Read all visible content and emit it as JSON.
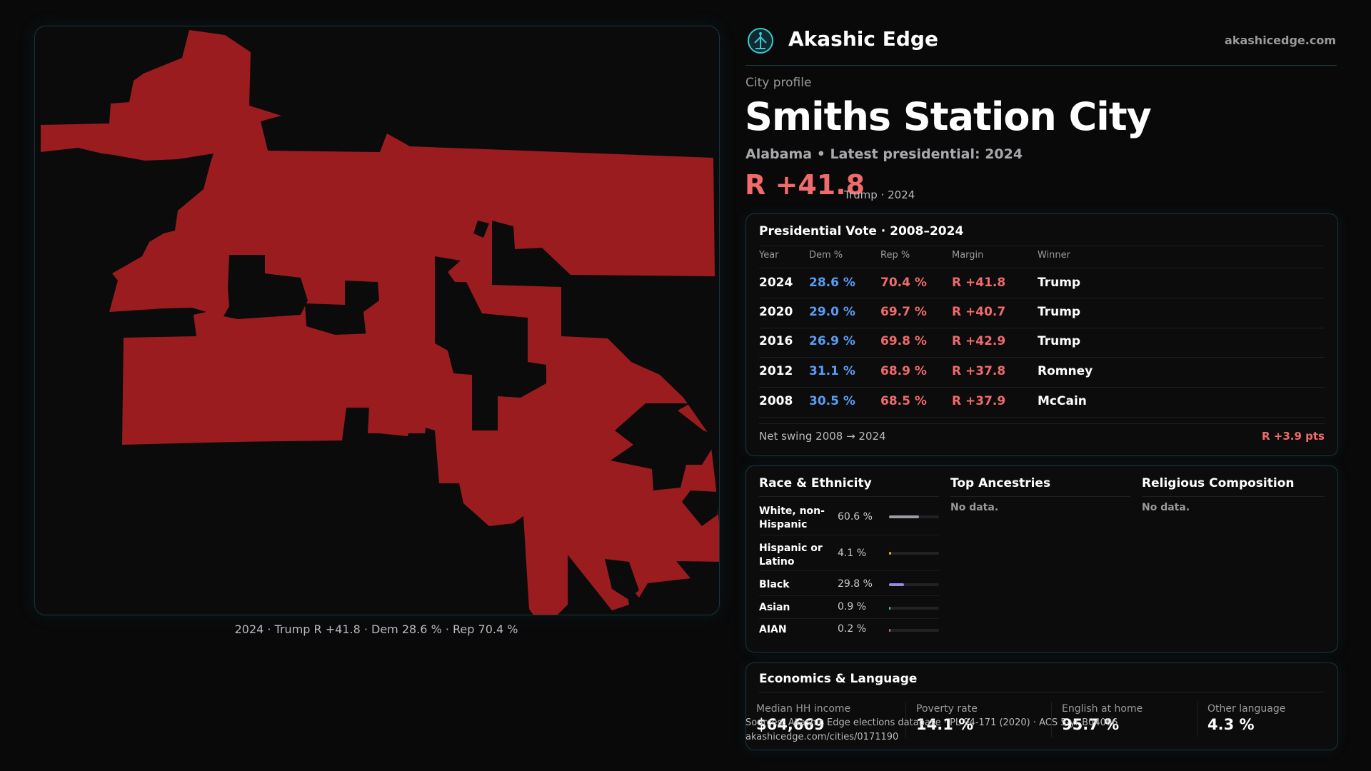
{
  "brand": {
    "name": "Akashic Edge",
    "url": "akashicedge.com",
    "logo_icon": "tree-of-life-icon",
    "accent": "#3cc7d6"
  },
  "profile": {
    "label": "City profile",
    "city": "Smiths Station City",
    "subtitle": "Alabama • Latest presidential: 2024",
    "margin": "R +41.8",
    "margin_note": "Trump · 2024"
  },
  "map": {
    "fill_color": "#9b1c1f",
    "caption": "2024 · Trump R +41.8 · Dem 28.6 % · Rep 70.4 %"
  },
  "vote": {
    "title": "Presidential Vote · 2008–2024",
    "columns": [
      "Year",
      "Dem %",
      "Rep %",
      "Margin",
      "Winner"
    ],
    "rows": [
      {
        "year": "2024",
        "dem": "28.6 %",
        "rep": "70.4 %",
        "margin": "R +41.8",
        "winner": "Trump"
      },
      {
        "year": "2020",
        "dem": "29.0 %",
        "rep": "69.7 %",
        "margin": "R +40.7",
        "winner": "Trump"
      },
      {
        "year": "2016",
        "dem": "26.9 %",
        "rep": "69.8 %",
        "margin": "R +42.9",
        "winner": "Trump"
      },
      {
        "year": "2012",
        "dem": "31.1 %",
        "rep": "68.9 %",
        "margin": "R +37.8",
        "winner": "Romney"
      },
      {
        "year": "2008",
        "dem": "30.5 %",
        "rep": "68.5 %",
        "margin": "R +37.9",
        "winner": "McCain"
      }
    ],
    "swing_label": "Net swing 2008 → 2024",
    "swing_value": "R +3.9 pts",
    "dem_color": "#5b9cf5",
    "rep_color": "#f06b6b"
  },
  "race": {
    "title": "Race & Ethnicity",
    "rows": [
      {
        "label": "White, non-Hispanic",
        "value": "60.6 %",
        "share": 0.606,
        "color": "#9a9ca6"
      },
      {
        "label": "Hispanic or Latino",
        "value": "4.1 %",
        "share": 0.041,
        "color": "#f0a030"
      },
      {
        "label": "Black",
        "value": "29.8 %",
        "share": 0.298,
        "color": "#9b86e6"
      },
      {
        "label": "Asian",
        "value": "0.9 %",
        "share": 0.009,
        "color": "#3cc7d6"
      },
      {
        "label": "AIAN",
        "value": "0.2 %",
        "share": 0.002,
        "color": "#e06a6a"
      }
    ]
  },
  "ancestries": {
    "title": "Top Ancestries",
    "empty": "No data."
  },
  "religion": {
    "title": "Religious Composition",
    "empty": "No data."
  },
  "economics": {
    "title": "Economics & Language",
    "items": [
      {
        "label": "Median HH income",
        "value": "$64,669"
      },
      {
        "label": "Poverty rate",
        "value": "14.1 %"
      },
      {
        "label": "English at home",
        "value": "95.7 %"
      },
      {
        "label": "Other language",
        "value": "4.3 %"
      }
    ]
  },
  "source": {
    "line": "Sources: Akashic Edge elections database · PL 94-171 (2020) · ACS 5-yr B04006",
    "url": "akashicedge.com/cities/0171190"
  }
}
